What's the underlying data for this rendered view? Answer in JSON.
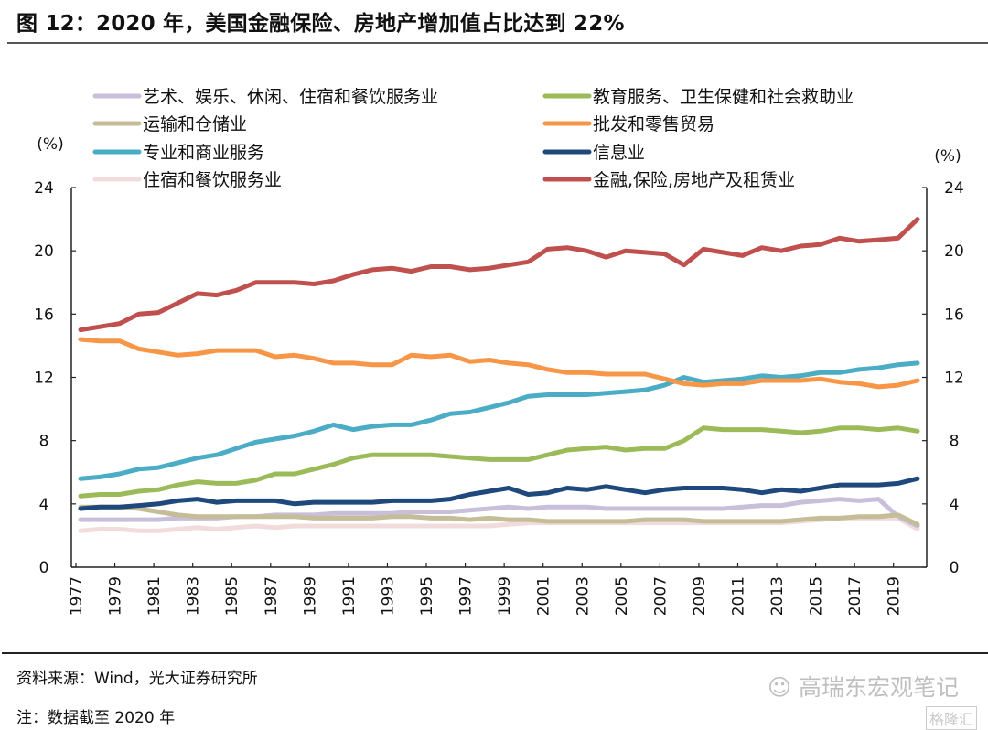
{
  "figure": {
    "title": "图 12：2020 年，美国金融保险、房地产增加值占比达到 22%",
    "source": "资料来源：Wind，光大证券研究所",
    "note": "注：数据截至 2020 年",
    "watermark": "高瑞东宏观笔记",
    "watermark_logo": "格隆汇"
  },
  "chart_data": {
    "type": "line",
    "title": "2020 年，美国金融保险、房地产增加值占比达到 22%",
    "xlabel": "",
    "ylabel": "(%)",
    "ylabel_right": "(%)",
    "ylim": [
      0,
      24
    ],
    "yticks": [
      "0",
      "4",
      "8",
      "12",
      "16",
      "20",
      "24"
    ],
    "xticks": [
      "1977",
      "1979",
      "1981",
      "1983",
      "1985",
      "1987",
      "1989",
      "1991",
      "1993",
      "1995",
      "1997",
      "1999",
      "2001",
      "2003",
      "2005",
      "2007",
      "2009",
      "2011",
      "2013",
      "2015",
      "2017",
      "2019"
    ],
    "x": [
      1977,
      1978,
      1979,
      1980,
      1981,
      1982,
      1983,
      1984,
      1985,
      1986,
      1987,
      1988,
      1989,
      1990,
      1991,
      1992,
      1993,
      1994,
      1995,
      1996,
      1997,
      1998,
      1999,
      2000,
      2001,
      2002,
      2003,
      2004,
      2005,
      2006,
      2007,
      2008,
      2009,
      2010,
      2011,
      2012,
      2013,
      2014,
      2015,
      2016,
      2017,
      2018,
      2019,
      2020
    ],
    "grid": false,
    "legend_position": "top",
    "series": [
      {
        "name": "艺术、娱乐、休闲、住宿和餐饮服务业",
        "color": "#c9bfdb",
        "values": [
          3.0,
          3.0,
          3.0,
          3.0,
          3.0,
          3.1,
          3.1,
          3.1,
          3.2,
          3.2,
          3.3,
          3.3,
          3.3,
          3.4,
          3.4,
          3.4,
          3.4,
          3.5,
          3.5,
          3.5,
          3.6,
          3.7,
          3.8,
          3.7,
          3.8,
          3.8,
          3.8,
          3.7,
          3.7,
          3.7,
          3.7,
          3.7,
          3.7,
          3.7,
          3.8,
          3.9,
          3.9,
          4.1,
          4.2,
          4.3,
          4.2,
          4.3,
          3.2,
          2.6
        ]
      },
      {
        "name": "教育服务、卫生保健和社会救助业",
        "color": "#9bbb59",
        "values": [
          4.5,
          4.6,
          4.6,
          4.8,
          4.9,
          5.2,
          5.4,
          5.3,
          5.3,
          5.5,
          5.9,
          5.9,
          6.2,
          6.5,
          6.9,
          7.1,
          7.1,
          7.1,
          7.1,
          7.0,
          6.9,
          6.8,
          6.8,
          6.8,
          7.1,
          7.4,
          7.5,
          7.6,
          7.4,
          7.5,
          7.5,
          8.0,
          8.8,
          8.7,
          8.7,
          8.7,
          8.6,
          8.5,
          8.6,
          8.8,
          8.8,
          8.7,
          8.8,
          8.6
        ]
      },
      {
        "name": "运输和仓储业",
        "color": "#c4bd97",
        "values": [
          3.8,
          3.8,
          3.8,
          3.7,
          3.5,
          3.3,
          3.2,
          3.2,
          3.2,
          3.2,
          3.2,
          3.2,
          3.1,
          3.1,
          3.1,
          3.1,
          3.2,
          3.2,
          3.1,
          3.1,
          3.0,
          3.1,
          3.0,
          3.0,
          2.9,
          2.9,
          2.9,
          2.9,
          2.9,
          3.0,
          3.0,
          3.0,
          2.9,
          2.9,
          2.9,
          2.9,
          2.9,
          3.0,
          3.1,
          3.1,
          3.2,
          3.2,
          3.3,
          2.7
        ]
      },
      {
        "name": "批发和零售贸易",
        "color": "#f79646",
        "values": [
          14.4,
          14.3,
          14.3,
          13.8,
          13.6,
          13.4,
          13.5,
          13.7,
          13.7,
          13.7,
          13.3,
          13.4,
          13.2,
          12.9,
          12.9,
          12.8,
          12.8,
          13.4,
          13.3,
          13.4,
          13.0,
          13.1,
          12.9,
          12.8,
          12.5,
          12.3,
          12.3,
          12.2,
          12.2,
          12.2,
          11.9,
          11.6,
          11.5,
          11.6,
          11.6,
          11.8,
          11.8,
          11.8,
          11.9,
          11.7,
          11.6,
          11.4,
          11.5,
          11.8
        ]
      },
      {
        "name": "专业和商业服务",
        "color": "#4bacc6",
        "values": [
          5.6,
          5.7,
          5.9,
          6.2,
          6.3,
          6.6,
          6.9,
          7.1,
          7.5,
          7.9,
          8.1,
          8.3,
          8.6,
          9.0,
          8.7,
          8.9,
          9.0,
          9.0,
          9.3,
          9.7,
          9.8,
          10.1,
          10.4,
          10.8,
          10.9,
          10.9,
          10.9,
          11.0,
          11.1,
          11.2,
          11.5,
          12.0,
          11.7,
          11.8,
          11.9,
          12.1,
          12.0,
          12.1,
          12.3,
          12.3,
          12.5,
          12.6,
          12.8,
          12.9
        ]
      },
      {
        "name": "信息业",
        "color": "#1f497d",
        "values": [
          3.7,
          3.8,
          3.8,
          3.9,
          4.0,
          4.2,
          4.3,
          4.1,
          4.2,
          4.2,
          4.2,
          4.0,
          4.1,
          4.1,
          4.1,
          4.1,
          4.2,
          4.2,
          4.2,
          4.3,
          4.6,
          4.8,
          5.0,
          4.6,
          4.7,
          5.0,
          4.9,
          5.1,
          4.9,
          4.7,
          4.9,
          5.0,
          5.0,
          5.0,
          4.9,
          4.7,
          4.9,
          4.8,
          5.0,
          5.2,
          5.2,
          5.2,
          5.3,
          5.6
        ]
      },
      {
        "name": "住宿和餐饮服务业",
        "color": "#f2dcdb",
        "values": [
          2.3,
          2.4,
          2.4,
          2.3,
          2.3,
          2.4,
          2.5,
          2.4,
          2.5,
          2.6,
          2.5,
          2.6,
          2.6,
          2.6,
          2.6,
          2.6,
          2.6,
          2.6,
          2.6,
          2.6,
          2.6,
          2.6,
          2.7,
          2.8,
          2.8,
          2.8,
          2.8,
          2.8,
          2.8,
          2.8,
          2.8,
          2.8,
          2.8,
          2.8,
          2.8,
          2.8,
          2.8,
          2.9,
          3.0,
          3.1,
          3.1,
          3.1,
          3.1,
          2.4
        ]
      },
      {
        "name": "金融,保险,房地产及租赁业",
        "color": "#c0504d",
        "values": [
          15.0,
          15.2,
          15.4,
          16.0,
          16.1,
          16.7,
          17.3,
          17.2,
          17.5,
          18.0,
          18.0,
          18.0,
          17.9,
          18.1,
          18.5,
          18.8,
          18.9,
          18.7,
          19.0,
          19.0,
          18.8,
          18.9,
          19.1,
          19.3,
          20.1,
          20.2,
          20.0,
          19.6,
          20.0,
          19.9,
          19.8,
          19.1,
          20.1,
          19.9,
          19.7,
          20.2,
          20.0,
          20.3,
          20.4,
          20.8,
          20.6,
          20.7,
          20.8,
          22.0
        ]
      }
    ]
  }
}
